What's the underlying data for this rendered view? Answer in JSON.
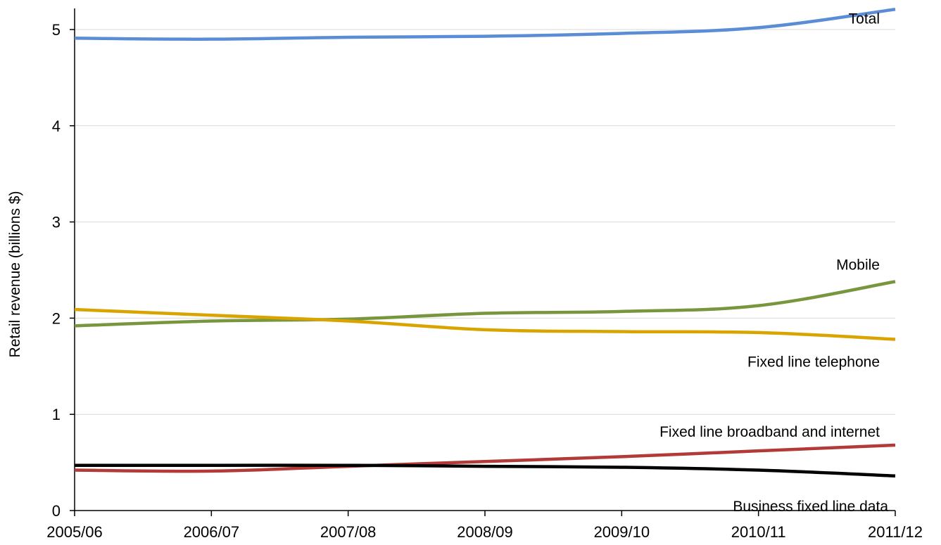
{
  "chart_data": {
    "type": "line",
    "title": "",
    "xlabel": "",
    "ylabel": "Retail revenue (billions $)",
    "categories": [
      "2005/06",
      "2006/07",
      "2007/08",
      "2008/09",
      "2009/10",
      "2010/11",
      "2011/12"
    ],
    "yticks": [
      "0",
      "1",
      "2",
      "3",
      "4",
      "5"
    ],
    "ylim": [
      0,
      5.2
    ],
    "grid": "horizontal",
    "legend": "inline labels at right end of lines",
    "series": [
      {
        "name": "Total",
        "color": "#5B8DD6",
        "values": [
          4.91,
          4.9,
          4.92,
          4.93,
          4.96,
          5.02,
          5.21
        ]
      },
      {
        "name": "Mobile",
        "color": "#77963E",
        "values": [
          1.92,
          1.97,
          1.99,
          2.05,
          2.07,
          2.13,
          2.38
        ]
      },
      {
        "name": "Fixed line telephone",
        "color": "#D9A400",
        "values": [
          2.09,
          2.03,
          1.97,
          1.88,
          1.86,
          1.85,
          1.78
        ]
      },
      {
        "name": "Fixed line broadband and internet",
        "color": "#B23A37",
        "values": [
          0.42,
          0.41,
          0.46,
          0.51,
          0.56,
          0.62,
          0.68
        ]
      },
      {
        "name": "Business fixed line data",
        "color": "#000000",
        "values": [
          0.47,
          0.47,
          0.47,
          0.46,
          0.45,
          0.42,
          0.36
        ]
      }
    ]
  }
}
